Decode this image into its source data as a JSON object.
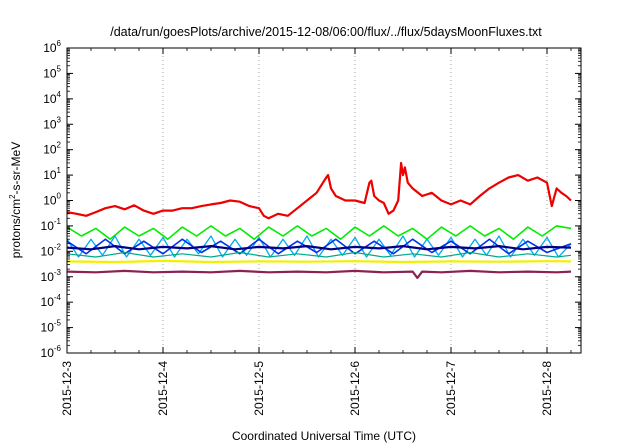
{
  "chart_data": {
    "type": "line",
    "title": "/data/run/goesPlots/archive/2015-12-08/06:00/flux/../flux/5daysMoonFluxes.txt",
    "xlabel": "Coordinated Universal Time (UTC)",
    "ylabel": {
      "pre": "protons/cm",
      "sup": "2",
      "post": "-s-sr-MeV"
    },
    "y_scale": "log",
    "ylim_exp": [
      -6,
      6
    ],
    "y_tick_base": "10",
    "y_tick_exponents": [
      "6",
      "5",
      "4",
      "3",
      "2",
      "1",
      "0",
      "-1",
      "-2",
      "-3",
      "-4",
      "-5",
      "-6"
    ],
    "xlim": [
      "2015-12-03",
      "2015-12-08 06:00"
    ],
    "x_ticks": [
      "2015-12-3",
      "2015-12-4",
      "2015-12-5",
      "2015-12-6",
      "2015-12-7",
      "2015-12-8"
    ],
    "grid": "vertical dotted at day ticks",
    "series": [
      {
        "color": "#ee0000",
        "width": 2.2,
        "points": [
          [
            0,
            0.35
          ],
          [
            0.1,
            0.3
          ],
          [
            0.2,
            0.25
          ],
          [
            0.3,
            0.35
          ],
          [
            0.4,
            0.5
          ],
          [
            0.5,
            0.6
          ],
          [
            0.6,
            0.45
          ],
          [
            0.7,
            0.65
          ],
          [
            0.8,
            0.4
          ],
          [
            0.9,
            0.3
          ],
          [
            1.0,
            0.4
          ],
          [
            1.1,
            0.4
          ],
          [
            1.2,
            0.5
          ],
          [
            1.3,
            0.5
          ],
          [
            1.4,
            0.6
          ],
          [
            1.5,
            0.7
          ],
          [
            1.6,
            0.8
          ],
          [
            1.7,
            1.0
          ],
          [
            1.8,
            0.9
          ],
          [
            1.9,
            0.6
          ],
          [
            2.0,
            0.5
          ],
          [
            2.05,
            0.25
          ],
          [
            2.1,
            0.2
          ],
          [
            2.2,
            0.3
          ],
          [
            2.3,
            0.25
          ],
          [
            2.4,
            0.5
          ],
          [
            2.5,
            1.0
          ],
          [
            2.6,
            2.0
          ],
          [
            2.65,
            4.0
          ],
          [
            2.7,
            8.0
          ],
          [
            2.72,
            10.0
          ],
          [
            2.75,
            3.0
          ],
          [
            2.8,
            1.5
          ],
          [
            2.9,
            1.0
          ],
          [
            3.0,
            1.0
          ],
          [
            3.1,
            0.8
          ],
          [
            3.15,
            5.0
          ],
          [
            3.17,
            6.0
          ],
          [
            3.2,
            1.5
          ],
          [
            3.25,
            1.0
          ],
          [
            3.3,
            0.8
          ],
          [
            3.35,
            0.3
          ],
          [
            3.4,
            0.4
          ],
          [
            3.45,
            1.0
          ],
          [
            3.48,
            30.0
          ],
          [
            3.5,
            10.0
          ],
          [
            3.52,
            20.0
          ],
          [
            3.55,
            5.0
          ],
          [
            3.6,
            3.0
          ],
          [
            3.7,
            1.5
          ],
          [
            3.8,
            2.0
          ],
          [
            3.9,
            1.0
          ],
          [
            4.0,
            0.7
          ],
          [
            4.1,
            1.0
          ],
          [
            4.2,
            0.7
          ],
          [
            4.3,
            1.5
          ],
          [
            4.4,
            3.0
          ],
          [
            4.5,
            5.0
          ],
          [
            4.6,
            8.0
          ],
          [
            4.7,
            10.0
          ],
          [
            4.8,
            6.0
          ],
          [
            4.9,
            8.0
          ],
          [
            5.0,
            5.0
          ],
          [
            5.05,
            0.6
          ],
          [
            5.1,
            3.0
          ],
          [
            5.15,
            2.0
          ],
          [
            5.2,
            1.5
          ],
          [
            5.25,
            1.0
          ]
        ]
      },
      {
        "color": "#00ee00",
        "width": 1.6,
        "points": [
          [
            0,
            0.09
          ],
          [
            0.15,
            0.04
          ],
          [
            0.3,
            0.08
          ],
          [
            0.45,
            0.03
          ],
          [
            0.6,
            0.09
          ],
          [
            0.75,
            0.04
          ],
          [
            0.9,
            0.08
          ],
          [
            1.05,
            0.03
          ],
          [
            1.2,
            0.09
          ],
          [
            1.35,
            0.04
          ],
          [
            1.5,
            0.1
          ],
          [
            1.65,
            0.04
          ],
          [
            1.8,
            0.08
          ],
          [
            1.95,
            0.03
          ],
          [
            2.1,
            0.09
          ],
          [
            2.25,
            0.04
          ],
          [
            2.4,
            0.1
          ],
          [
            2.55,
            0.04
          ],
          [
            2.7,
            0.08
          ],
          [
            2.85,
            0.03
          ],
          [
            3.0,
            0.09
          ],
          [
            3.15,
            0.04
          ],
          [
            3.3,
            0.1
          ],
          [
            3.45,
            0.04
          ],
          [
            3.6,
            0.08
          ],
          [
            3.75,
            0.03
          ],
          [
            3.9,
            0.09
          ],
          [
            4.05,
            0.04
          ],
          [
            4.2,
            0.1
          ],
          [
            4.35,
            0.04
          ],
          [
            4.5,
            0.08
          ],
          [
            4.65,
            0.03
          ],
          [
            4.8,
            0.09
          ],
          [
            4.95,
            0.04
          ],
          [
            5.1,
            0.1
          ],
          [
            5.25,
            0.08
          ]
        ]
      },
      {
        "color": "#00aaee",
        "width": 1.3,
        "points": [
          [
            0,
            0.03
          ],
          [
            0.12,
            0.006
          ],
          [
            0.25,
            0.03
          ],
          [
            0.37,
            0.007
          ],
          [
            0.5,
            0.04
          ],
          [
            0.62,
            0.006
          ],
          [
            0.75,
            0.03
          ],
          [
            0.87,
            0.007
          ],
          [
            1.0,
            0.035
          ],
          [
            1.12,
            0.006
          ],
          [
            1.25,
            0.03
          ],
          [
            1.37,
            0.008
          ],
          [
            1.5,
            0.04
          ],
          [
            1.62,
            0.006
          ],
          [
            1.75,
            0.03
          ],
          [
            1.87,
            0.007
          ],
          [
            2.0,
            0.035
          ],
          [
            2.12,
            0.006
          ],
          [
            2.25,
            0.03
          ],
          [
            2.37,
            0.007
          ],
          [
            2.5,
            0.04
          ],
          [
            2.62,
            0.006
          ],
          [
            2.75,
            0.03
          ],
          [
            2.87,
            0.007
          ],
          [
            3.0,
            0.035
          ],
          [
            3.12,
            0.006
          ],
          [
            3.25,
            0.03
          ],
          [
            3.37,
            0.007
          ],
          [
            3.5,
            0.04
          ],
          [
            3.62,
            0.006
          ],
          [
            3.75,
            0.03
          ],
          [
            3.87,
            0.007
          ],
          [
            4.0,
            0.035
          ],
          [
            4.12,
            0.006
          ],
          [
            4.25,
            0.03
          ],
          [
            4.37,
            0.007
          ],
          [
            4.5,
            0.04
          ],
          [
            4.62,
            0.006
          ],
          [
            4.75,
            0.03
          ],
          [
            4.87,
            0.007
          ],
          [
            5.0,
            0.035
          ],
          [
            5.12,
            0.006
          ],
          [
            5.25,
            0.02
          ]
        ]
      },
      {
        "color": "#0033ee",
        "width": 1.6,
        "points": [
          [
            0,
            0.025
          ],
          [
            0.2,
            0.008
          ],
          [
            0.4,
            0.03
          ],
          [
            0.6,
            0.008
          ],
          [
            0.8,
            0.025
          ],
          [
            1.0,
            0.008
          ],
          [
            1.2,
            0.03
          ],
          [
            1.4,
            0.009
          ],
          [
            1.6,
            0.025
          ],
          [
            1.8,
            0.008
          ],
          [
            2.0,
            0.03
          ],
          [
            2.2,
            0.008
          ],
          [
            2.4,
            0.025
          ],
          [
            2.6,
            0.009
          ],
          [
            2.8,
            0.03
          ],
          [
            3.0,
            0.008
          ],
          [
            3.2,
            0.025
          ],
          [
            3.4,
            0.008
          ],
          [
            3.6,
            0.03
          ],
          [
            3.8,
            0.009
          ],
          [
            4.0,
            0.025
          ],
          [
            4.2,
            0.008
          ],
          [
            4.4,
            0.03
          ],
          [
            4.6,
            0.008
          ],
          [
            4.8,
            0.025
          ],
          [
            5.0,
            0.009
          ],
          [
            5.25,
            0.02
          ]
        ]
      },
      {
        "color": "#000080",
        "width": 2.2,
        "points": [
          [
            0,
            0.014
          ],
          [
            0.25,
            0.012
          ],
          [
            0.5,
            0.016
          ],
          [
            0.75,
            0.012
          ],
          [
            1.0,
            0.015
          ],
          [
            1.25,
            0.013
          ],
          [
            1.5,
            0.016
          ],
          [
            1.75,
            0.012
          ],
          [
            2.0,
            0.015
          ],
          [
            2.25,
            0.013
          ],
          [
            2.5,
            0.016
          ],
          [
            2.75,
            0.012
          ],
          [
            3.0,
            0.015
          ],
          [
            3.25,
            0.013
          ],
          [
            3.5,
            0.016
          ],
          [
            3.75,
            0.012
          ],
          [
            4.0,
            0.015
          ],
          [
            4.25,
            0.013
          ],
          [
            4.5,
            0.016
          ],
          [
            4.75,
            0.012
          ],
          [
            5.0,
            0.015
          ],
          [
            5.25,
            0.014
          ]
        ]
      },
      {
        "color": "#00aa88",
        "width": 1.2,
        "points": [
          [
            0,
            0.008
          ],
          [
            0.3,
            0.006
          ],
          [
            0.6,
            0.009
          ],
          [
            0.9,
            0.006
          ],
          [
            1.2,
            0.008
          ],
          [
            1.5,
            0.006
          ],
          [
            1.8,
            0.009
          ],
          [
            2.1,
            0.006
          ],
          [
            2.4,
            0.008
          ],
          [
            2.7,
            0.006
          ],
          [
            3.0,
            0.009
          ],
          [
            3.3,
            0.006
          ],
          [
            3.6,
            0.008
          ],
          [
            3.9,
            0.006
          ],
          [
            4.2,
            0.009
          ],
          [
            4.5,
            0.006
          ],
          [
            4.8,
            0.008
          ],
          [
            5.1,
            0.006
          ],
          [
            5.25,
            0.007
          ]
        ]
      },
      {
        "color": "#f0f000",
        "width": 2.2,
        "points": [
          [
            0,
            0.004
          ],
          [
            0.5,
            0.0038
          ],
          [
            1.0,
            0.0042
          ],
          [
            1.5,
            0.0038
          ],
          [
            2.0,
            0.004
          ],
          [
            2.5,
            0.0039
          ],
          [
            3.0,
            0.0041
          ],
          [
            3.5,
            0.0038
          ],
          [
            4.0,
            0.004
          ],
          [
            4.5,
            0.0039
          ],
          [
            5.0,
            0.0041
          ],
          [
            5.25,
            0.004
          ]
        ]
      },
      {
        "color": "#8b2252",
        "width": 2.2,
        "points": [
          [
            0,
            0.0016
          ],
          [
            0.3,
            0.0015
          ],
          [
            0.6,
            0.0017
          ],
          [
            0.9,
            0.0015
          ],
          [
            1.2,
            0.0016
          ],
          [
            1.5,
            0.0015
          ],
          [
            1.8,
            0.0017
          ],
          [
            2.1,
            0.0015
          ],
          [
            2.4,
            0.0016
          ],
          [
            2.7,
            0.0015
          ],
          [
            3.0,
            0.0017
          ],
          [
            3.3,
            0.0015
          ],
          [
            3.6,
            0.0016
          ],
          [
            3.65,
            0.0009
          ],
          [
            3.7,
            0.0016
          ],
          [
            3.9,
            0.0015
          ],
          [
            4.2,
            0.0017
          ],
          [
            4.5,
            0.0015
          ],
          [
            4.8,
            0.0016
          ],
          [
            5.1,
            0.0015
          ],
          [
            5.25,
            0.0016
          ]
        ]
      }
    ]
  }
}
